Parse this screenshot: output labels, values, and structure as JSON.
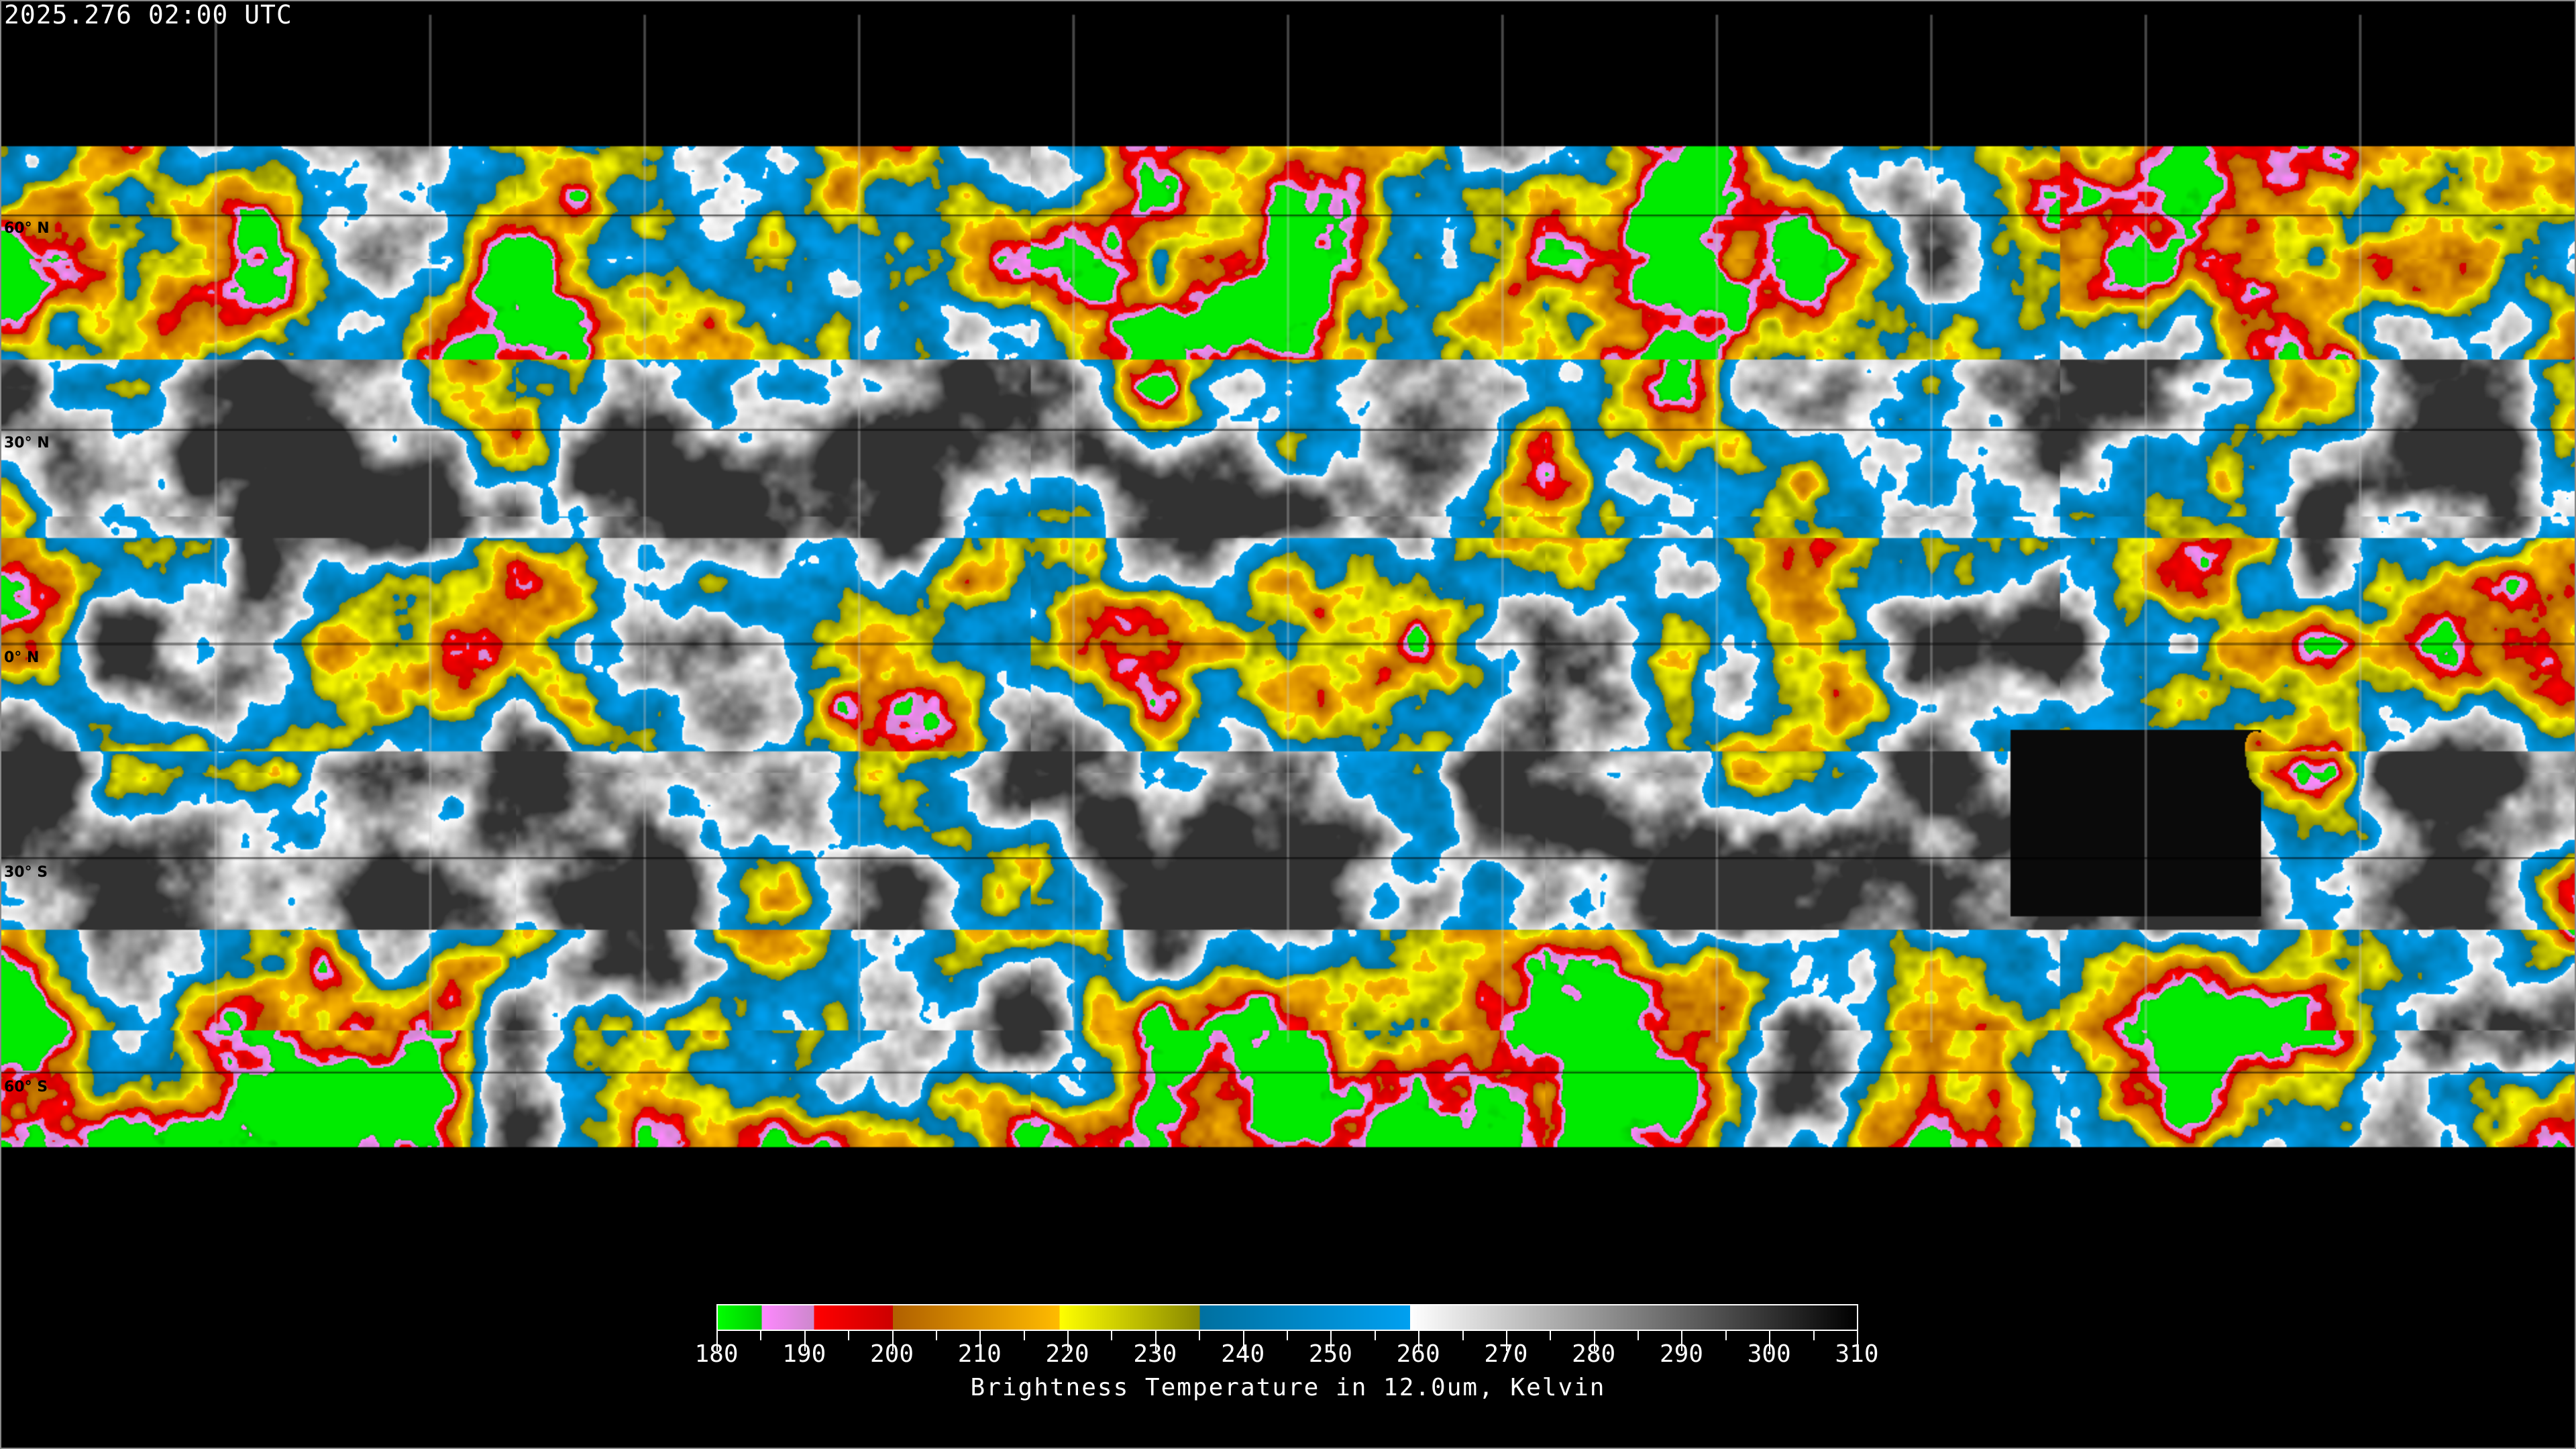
{
  "title": "2025.276 02:00 UTC",
  "map": {
    "projection": "equirectangular",
    "grid_on": true,
    "lat_labels": [
      "60° N",
      "30° N",
      "0° N",
      "30° S",
      "60° S"
    ],
    "lat_values": [
      60,
      30,
      0,
      -30,
      -60
    ],
    "lon_grid_step_deg": 30
  },
  "colorbar": {
    "min": 180,
    "max": 310,
    "tick_labels": [
      "180",
      "190",
      "200",
      "210",
      "220",
      "230",
      "240",
      "250",
      "260",
      "270",
      "280",
      "290",
      "300",
      "310"
    ],
    "minor_tick_step": 5,
    "label": "Brightness Temperature in 12.0um, Kelvin",
    "segments": [
      {
        "from": 180,
        "to": 185,
        "start": "#00ff00",
        "end": "#00cc00"
      },
      {
        "from": 185,
        "to": 191,
        "start": "#ff88ff",
        "end": "#cc88cc"
      },
      {
        "from": 191,
        "to": 200,
        "start": "#ff0000",
        "end": "#cc0000"
      },
      {
        "from": 200,
        "to": 219,
        "start": "#b06000",
        "end": "#ffbb00"
      },
      {
        "from": 219,
        "to": 235,
        "start": "#ffff00",
        "end": "#888800"
      },
      {
        "from": 235,
        "to": 259,
        "start": "#0070a0",
        "end": "#00a0f0"
      },
      {
        "from": 259,
        "to": 310,
        "start": "#ffffff",
        "end": "#000000"
      }
    ]
  }
}
